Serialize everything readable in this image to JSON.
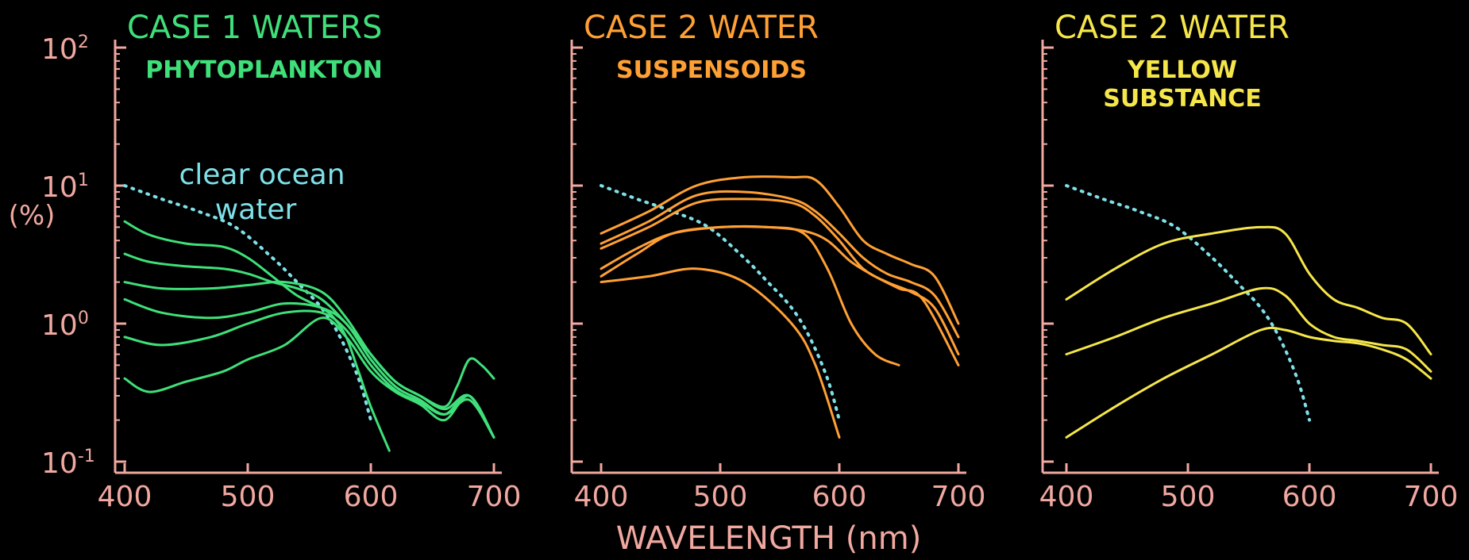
{
  "y_axis_label": "(%)",
  "x_axis_label": "WAVELENGTH (nm)",
  "y_tick_labels": [
    {
      "base": "10",
      "exp": "2",
      "value": 100
    },
    {
      "base": "10",
      "exp": "1",
      "value": 10
    },
    {
      "base": "10",
      "exp": "0",
      "value": 1
    },
    {
      "base": "10",
      "exp": "-1",
      "value": 0.1
    }
  ],
  "x_tick_labels": [
    "400",
    "500",
    "600",
    "700"
  ],
  "colors": {
    "axis": "#f0a8a0",
    "case1": "#3fe07a",
    "case2_suspensoids": "#ffa035",
    "case2_yellow": "#f5e64a",
    "clear_ocean": "#7fe0e8"
  },
  "annotation": {
    "line1": "clear ocean",
    "line2": "water"
  },
  "chart_data": [
    {
      "type": "line",
      "title": "CASE 1   WATERS",
      "subtitle": [
        "PHYTOPLANKTON"
      ],
      "color_key": "case1",
      "xlabel": "WAVELENGTH (nm)",
      "ylabel": "(%)",
      "xlim": [
        400,
        700
      ],
      "ylim": [
        0.1,
        100
      ],
      "y_scale": "log",
      "reference": {
        "x": [
          400,
          430,
          460,
          490,
          520,
          540,
          560,
          575,
          590,
          600
        ],
        "y": [
          10,
          8,
          6.5,
          5,
          3,
          2,
          1.3,
          0.8,
          0.4,
          0.2
        ]
      },
      "series": [
        {
          "x": [
            400,
            420,
            450,
            480,
            500,
            520,
            540,
            560,
            570,
            580,
            590,
            600,
            615
          ],
          "y": [
            5.5,
            4.4,
            3.8,
            3.6,
            3,
            2.2,
            1.6,
            1.3,
            1.1,
            0.8,
            0.45,
            0.25,
            0.12
          ]
        },
        {
          "x": [
            400,
            420,
            450,
            480,
            500,
            520,
            540,
            560,
            580,
            600,
            620,
            640,
            660,
            670,
            680,
            690,
            700
          ],
          "y": [
            3.2,
            2.8,
            2.6,
            2.5,
            2.3,
            2,
            1.8,
            1.5,
            1,
            0.6,
            0.38,
            0.3,
            0.25,
            0.35,
            0.55,
            0.5,
            0.4
          ]
        },
        {
          "x": [
            400,
            430,
            470,
            500,
            530,
            560,
            580,
            600,
            620,
            640,
            660,
            680,
            700
          ],
          "y": [
            2,
            1.8,
            1.8,
            1.9,
            2,
            1.7,
            1.1,
            0.6,
            0.38,
            0.3,
            0.24,
            0.3,
            0.15
          ]
        },
        {
          "x": [
            400,
            430,
            470,
            500,
            530,
            560,
            580,
            600,
            620,
            640,
            660,
            680,
            700
          ],
          "y": [
            1.5,
            1.2,
            1.1,
            1.2,
            1.4,
            1.3,
            1,
            0.55,
            0.35,
            0.28,
            0.22,
            0.28,
            0.15
          ]
        },
        {
          "x": [
            400,
            430,
            470,
            500,
            530,
            560,
            580,
            600,
            620,
            640,
            660,
            680,
            700
          ],
          "y": [
            0.8,
            0.7,
            0.8,
            1,
            1.2,
            1.2,
            0.9,
            0.5,
            0.33,
            0.27,
            0.22,
            0.3,
            0.15
          ]
        },
        {
          "x": [
            400,
            420,
            450,
            480,
            500,
            530,
            560,
            580,
            600,
            620,
            640,
            660,
            680,
            700
          ],
          "y": [
            0.4,
            0.32,
            0.38,
            0.45,
            0.55,
            0.7,
            1.1,
            0.8,
            0.45,
            0.32,
            0.26,
            0.2,
            0.3,
            0.15
          ]
        }
      ]
    },
    {
      "type": "line",
      "title": "CASE 2   WATER",
      "subtitle": [
        "SUSPENSOIDS"
      ],
      "color_key": "case2_suspensoids",
      "xlabel": "WAVELENGTH (nm)",
      "ylabel": "(%)",
      "xlim": [
        400,
        700
      ],
      "ylim": [
        0.1,
        100
      ],
      "y_scale": "log",
      "reference": {
        "x": [
          400,
          430,
          460,
          490,
          520,
          540,
          560,
          575,
          590,
          600
        ],
        "y": [
          10,
          8,
          6.5,
          5,
          3,
          2,
          1.3,
          0.8,
          0.4,
          0.2
        ]
      },
      "series": [
        {
          "x": [
            400,
            440,
            480,
            520,
            560,
            580,
            600,
            620,
            640,
            660,
            680,
            700
          ],
          "y": [
            4.5,
            6.5,
            10,
            11.5,
            11.5,
            11,
            7,
            4,
            3.2,
            2.7,
            2.2,
            1
          ]
        },
        {
          "x": [
            400,
            440,
            480,
            520,
            560,
            580,
            600,
            620,
            640,
            660,
            680,
            700
          ],
          "y": [
            3.8,
            5.5,
            8.5,
            9,
            8,
            6.5,
            4.5,
            3,
            2.3,
            2,
            1.6,
            0.8
          ]
        },
        {
          "x": [
            400,
            440,
            480,
            520,
            560,
            580,
            600,
            620,
            640,
            660,
            680,
            700
          ],
          "y": [
            3.5,
            5,
            7.5,
            8,
            7.5,
            6,
            4,
            2.5,
            2,
            1.7,
            1.3,
            0.6
          ]
        },
        {
          "x": [
            400,
            430,
            460,
            500,
            540,
            570,
            590,
            610,
            630,
            650
          ],
          "y": [
            2.2,
            3.2,
            4.5,
            5,
            5,
            4.5,
            2.5,
            1,
            0.6,
            0.5
          ]
        },
        {
          "x": [
            400,
            440,
            480,
            520,
            560,
            580,
            600
          ],
          "y": [
            2,
            2.2,
            2.5,
            2,
            1,
            0.5,
            0.15
          ]
        },
        {
          "x": [
            400,
            430,
            460,
            500,
            540,
            570,
            590,
            610,
            630,
            650,
            670,
            700
          ],
          "y": [
            2.5,
            3.5,
            4.5,
            5,
            5,
            4.7,
            4,
            2.8,
            2.2,
            1.8,
            1.5,
            0.5
          ]
        }
      ]
    },
    {
      "type": "line",
      "title": "CASE 2   WATER",
      "subtitle": [
        "YELLOW",
        "SUBSTANCE"
      ],
      "color_key": "case2_yellow",
      "xlabel": "WAVELENGTH (nm)",
      "ylabel": "(%)",
      "xlim": [
        400,
        700
      ],
      "ylim": [
        0.1,
        100
      ],
      "y_scale": "log",
      "reference": {
        "x": [
          400,
          430,
          460,
          490,
          520,
          540,
          560,
          575,
          590,
          600
        ],
        "y": [
          10,
          8,
          6.5,
          5,
          3,
          2,
          1.3,
          0.8,
          0.4,
          0.2
        ]
      },
      "series": [
        {
          "x": [
            400,
            440,
            480,
            520,
            560,
            580,
            600,
            620,
            640,
            660,
            680,
            700
          ],
          "y": [
            1.5,
            2.5,
            3.8,
            4.5,
            5,
            4.5,
            2.3,
            1.5,
            1.3,
            1.1,
            1,
            0.6
          ]
        },
        {
          "x": [
            400,
            440,
            480,
            520,
            560,
            580,
            600,
            620,
            640,
            660,
            680,
            700
          ],
          "y": [
            0.6,
            0.8,
            1.1,
            1.4,
            1.8,
            1.6,
            1,
            0.8,
            0.75,
            0.7,
            0.65,
            0.45
          ]
        },
        {
          "x": [
            400,
            440,
            480,
            520,
            560,
            580,
            600,
            620,
            640,
            660,
            680,
            700
          ],
          "y": [
            0.15,
            0.25,
            0.4,
            0.6,
            0.9,
            0.9,
            0.8,
            0.75,
            0.72,
            0.65,
            0.55,
            0.4
          ]
        }
      ]
    }
  ]
}
